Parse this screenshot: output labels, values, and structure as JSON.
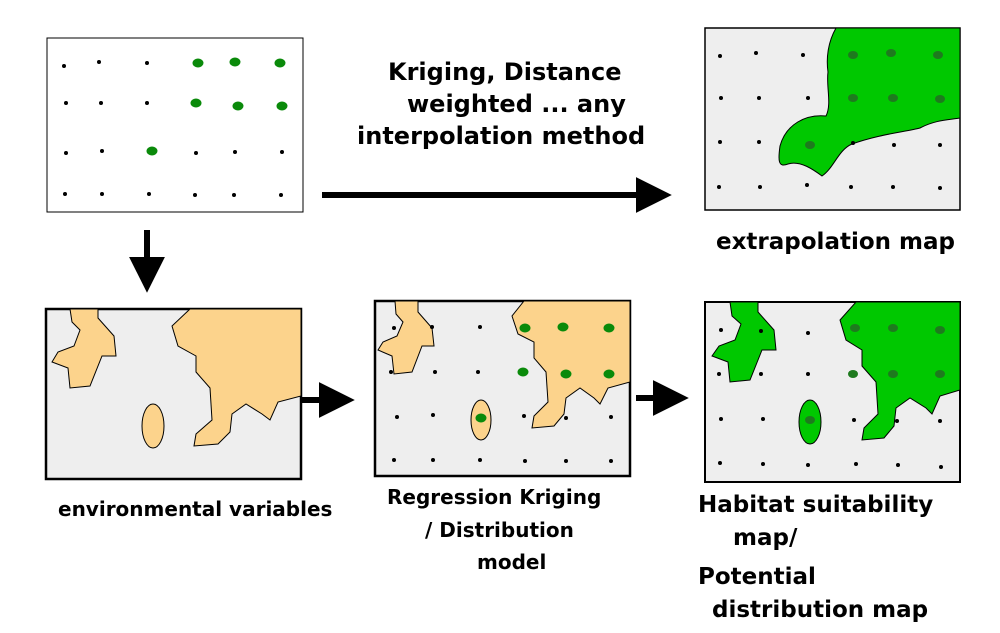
{
  "labels": {
    "method_line1": "Kriging, Distance",
    "method_line2": "weighted ... any",
    "method_line3": "interpolation method",
    "extrapolation": "extrapolation map",
    "env_vars": "environmental variables",
    "rk_line1": "Regression Kriging",
    "rk_line2": "/ Distribution",
    "rk_line3": "model",
    "habitat_line1": "Habitat suitability",
    "habitat_line2": "map/",
    "potential_line1": "Potential",
    "potential_line2": "distribution map"
  },
  "colors": {
    "presence_green": "#0a8a0a",
    "fill_green": "#00c800",
    "env_beige": "#fcd38c",
    "panel_gray": "#eeeeee",
    "ink": "#000000"
  }
}
